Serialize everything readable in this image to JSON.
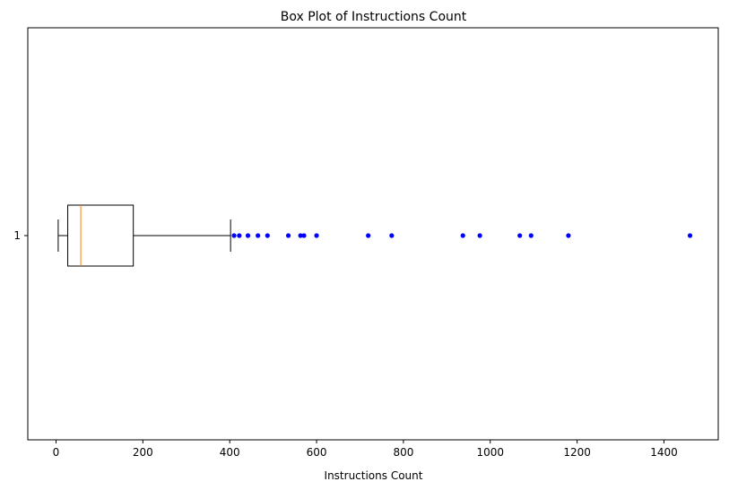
{
  "chart_data": {
    "type": "box",
    "orientation": "horizontal",
    "title": "Box Plot of Instructions Count",
    "xlabel": "Instructions Count",
    "ylabel": "",
    "xlim": [
      -65,
      1525
    ],
    "x_ticks": [
      0,
      200,
      400,
      600,
      800,
      1000,
      1200,
      1400
    ],
    "x_tick_labels": [
      "0",
      "200",
      "400",
      "600",
      "800",
      "1000",
      "1200",
      "1400"
    ],
    "y_tick_labels": [
      "1"
    ],
    "grid": false,
    "legend": "none",
    "box": {
      "whisker_low": 5,
      "q1": 27,
      "median": 57,
      "q3": 178,
      "whisker_high": 402
    },
    "outliers": [
      410,
      422,
      442,
      465,
      487,
      535,
      563,
      571,
      600,
      719,
      773,
      937,
      976,
      1068,
      1094,
      1180,
      1460
    ],
    "colors": {
      "box": "#000000",
      "median": "#ff7f0e",
      "outlier": "#0000ff"
    }
  }
}
